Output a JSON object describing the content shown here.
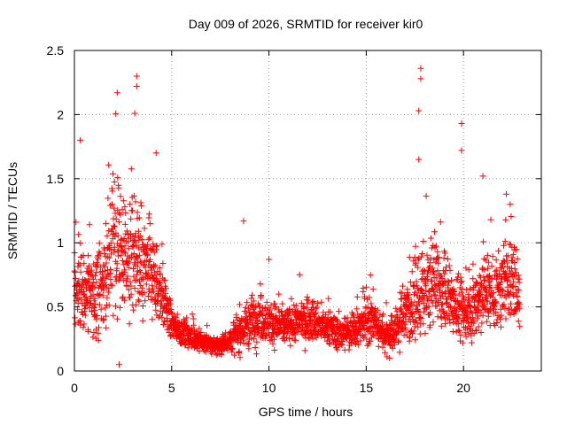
{
  "chart_data": {
    "type": "scatter",
    "title": "Day 009 of 2026, SRMTID for receiver kir0",
    "xlabel": "GPS time / hours",
    "ylabel": "SRMTID / TECUs",
    "xlim": [
      0,
      24
    ],
    "ylim": [
      0,
      2.5
    ],
    "grid": true,
    "marker": "+",
    "color": "#ff0000",
    "x_ticks": [
      0,
      5,
      10,
      15,
      20
    ],
    "x_tick_labels": [
      "0",
      "5",
      "10",
      "15",
      "20"
    ],
    "y_ticks": [
      0,
      0.5,
      1,
      1.5,
      2,
      2.5
    ],
    "y_tick_labels": [
      "0",
      "0.5",
      "1",
      "1.5",
      "2",
      "2.5"
    ],
    "x_data_end": 22.9,
    "envelope": {
      "hours": [
        0,
        0.5,
        1,
        1.5,
        2,
        2.2,
        2.5,
        3,
        3.5,
        4,
        4.5,
        5,
        5.5,
        6,
        6.5,
        7,
        7.5,
        8,
        8.5,
        9,
        9.5,
        10,
        10.5,
        11,
        11.5,
        12,
        12.5,
        13,
        13.5,
        14,
        14.5,
        15,
        15.5,
        16,
        16.5,
        17,
        17.5,
        18,
        18.5,
        19,
        19.5,
        20,
        20.5,
        21,
        21.5,
        22,
        22.5,
        22.9
      ],
      "median": [
        0.62,
        0.62,
        0.58,
        0.7,
        0.95,
        1.05,
        0.9,
        0.88,
        0.8,
        0.75,
        0.6,
        0.38,
        0.3,
        0.27,
        0.23,
        0.2,
        0.2,
        0.25,
        0.3,
        0.38,
        0.42,
        0.4,
        0.36,
        0.35,
        0.38,
        0.4,
        0.36,
        0.33,
        0.3,
        0.3,
        0.32,
        0.4,
        0.36,
        0.28,
        0.32,
        0.45,
        0.55,
        0.62,
        0.68,
        0.6,
        0.55,
        0.45,
        0.5,
        0.62,
        0.6,
        0.65,
        0.75,
        0.55
      ],
      "spread": [
        0.3,
        0.3,
        0.3,
        0.35,
        0.45,
        0.5,
        0.45,
        0.45,
        0.4,
        0.35,
        0.25,
        0.12,
        0.1,
        0.09,
        0.08,
        0.07,
        0.07,
        0.1,
        0.15,
        0.18,
        0.18,
        0.16,
        0.14,
        0.13,
        0.14,
        0.15,
        0.14,
        0.12,
        0.12,
        0.12,
        0.13,
        0.2,
        0.16,
        0.12,
        0.15,
        0.25,
        0.3,
        0.3,
        0.3,
        0.28,
        0.26,
        0.22,
        0.25,
        0.3,
        0.28,
        0.3,
        0.32,
        0.25
      ]
    },
    "notable_points": [
      {
        "x": 0.3,
        "y": 1.8
      },
      {
        "x": 2.2,
        "y": 2.17
      },
      {
        "x": 2.3,
        "y": 0.05
      },
      {
        "x": 3.2,
        "y": 2.3
      },
      {
        "x": 3.2,
        "y": 2.22
      },
      {
        "x": 3.1,
        "y": 2.01
      },
      {
        "x": 4.2,
        "y": 1.7
      },
      {
        "x": 8.7,
        "y": 1.17
      },
      {
        "x": 10.0,
        "y": 0.87
      },
      {
        "x": 17.8,
        "y": 2.36
      },
      {
        "x": 17.8,
        "y": 2.28
      },
      {
        "x": 17.7,
        "y": 2.03
      },
      {
        "x": 17.7,
        "y": 1.65
      },
      {
        "x": 19.9,
        "y": 1.93
      },
      {
        "x": 19.9,
        "y": 1.72
      },
      {
        "x": 21.0,
        "y": 1.52
      },
      {
        "x": 22.2,
        "y": 1.38
      },
      {
        "x": 22.4,
        "y": 1.3
      },
      {
        "x": 16.2,
        "y": 0.1
      }
    ]
  }
}
